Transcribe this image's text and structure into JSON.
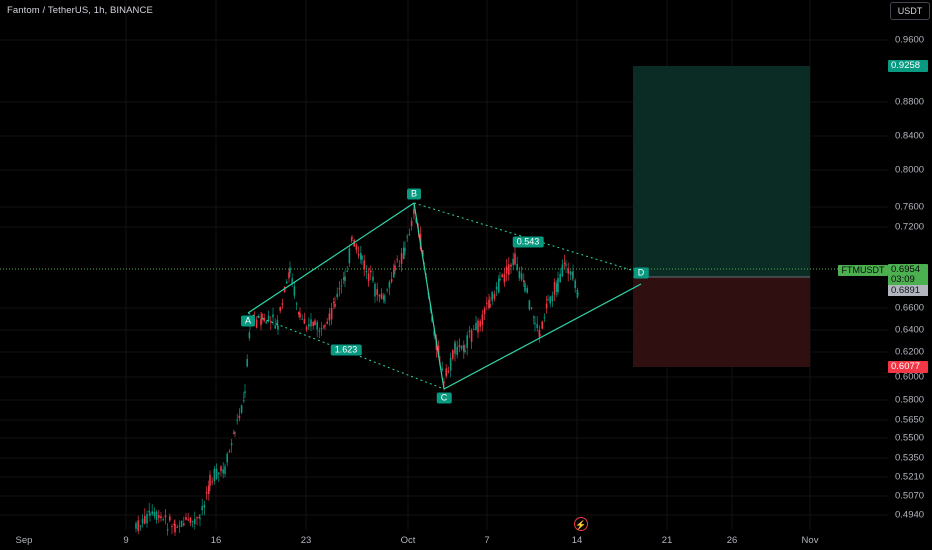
{
  "header": {
    "symbol_title": "Fantom / TetherUS, 1h, BINANCE",
    "currency_button": "USDT"
  },
  "y_axis": {
    "ticks": [
      "0.9600",
      "0.8800",
      "0.8400",
      "0.8000",
      "0.7600",
      "0.7200",
      "0.6600",
      "0.6400",
      "0.6200",
      "0.6000",
      "0.5800",
      "0.5650",
      "0.5500",
      "0.5350",
      "0.5210",
      "0.5070",
      "0.4940"
    ]
  },
  "x_axis": {
    "ticks": [
      "Sep",
      "9",
      "16",
      "23",
      "Oct",
      "7",
      "14",
      "21",
      "26",
      "Nov"
    ]
  },
  "price_labels": {
    "take_profit": "0.9258",
    "stop_loss": "0.6077",
    "symbol": "FTMUSDT",
    "last_price": "0.6954",
    "countdown": "03:09",
    "secondary_price": "0.6891"
  },
  "pattern": {
    "points": [
      "A",
      "B",
      "C",
      "D"
    ],
    "ratio_left": "1.623",
    "ratio_right": "0.543"
  },
  "colors": {
    "background": "#000000",
    "bull": "#089981",
    "bear": "#f23645",
    "pattern_line": "#2fd3a8",
    "target_zone": "#0b2e27",
    "stop_zone": "#331012",
    "last_price": "#4caf50"
  },
  "icons": {
    "flash": "lightning-bolt-icon"
  }
}
